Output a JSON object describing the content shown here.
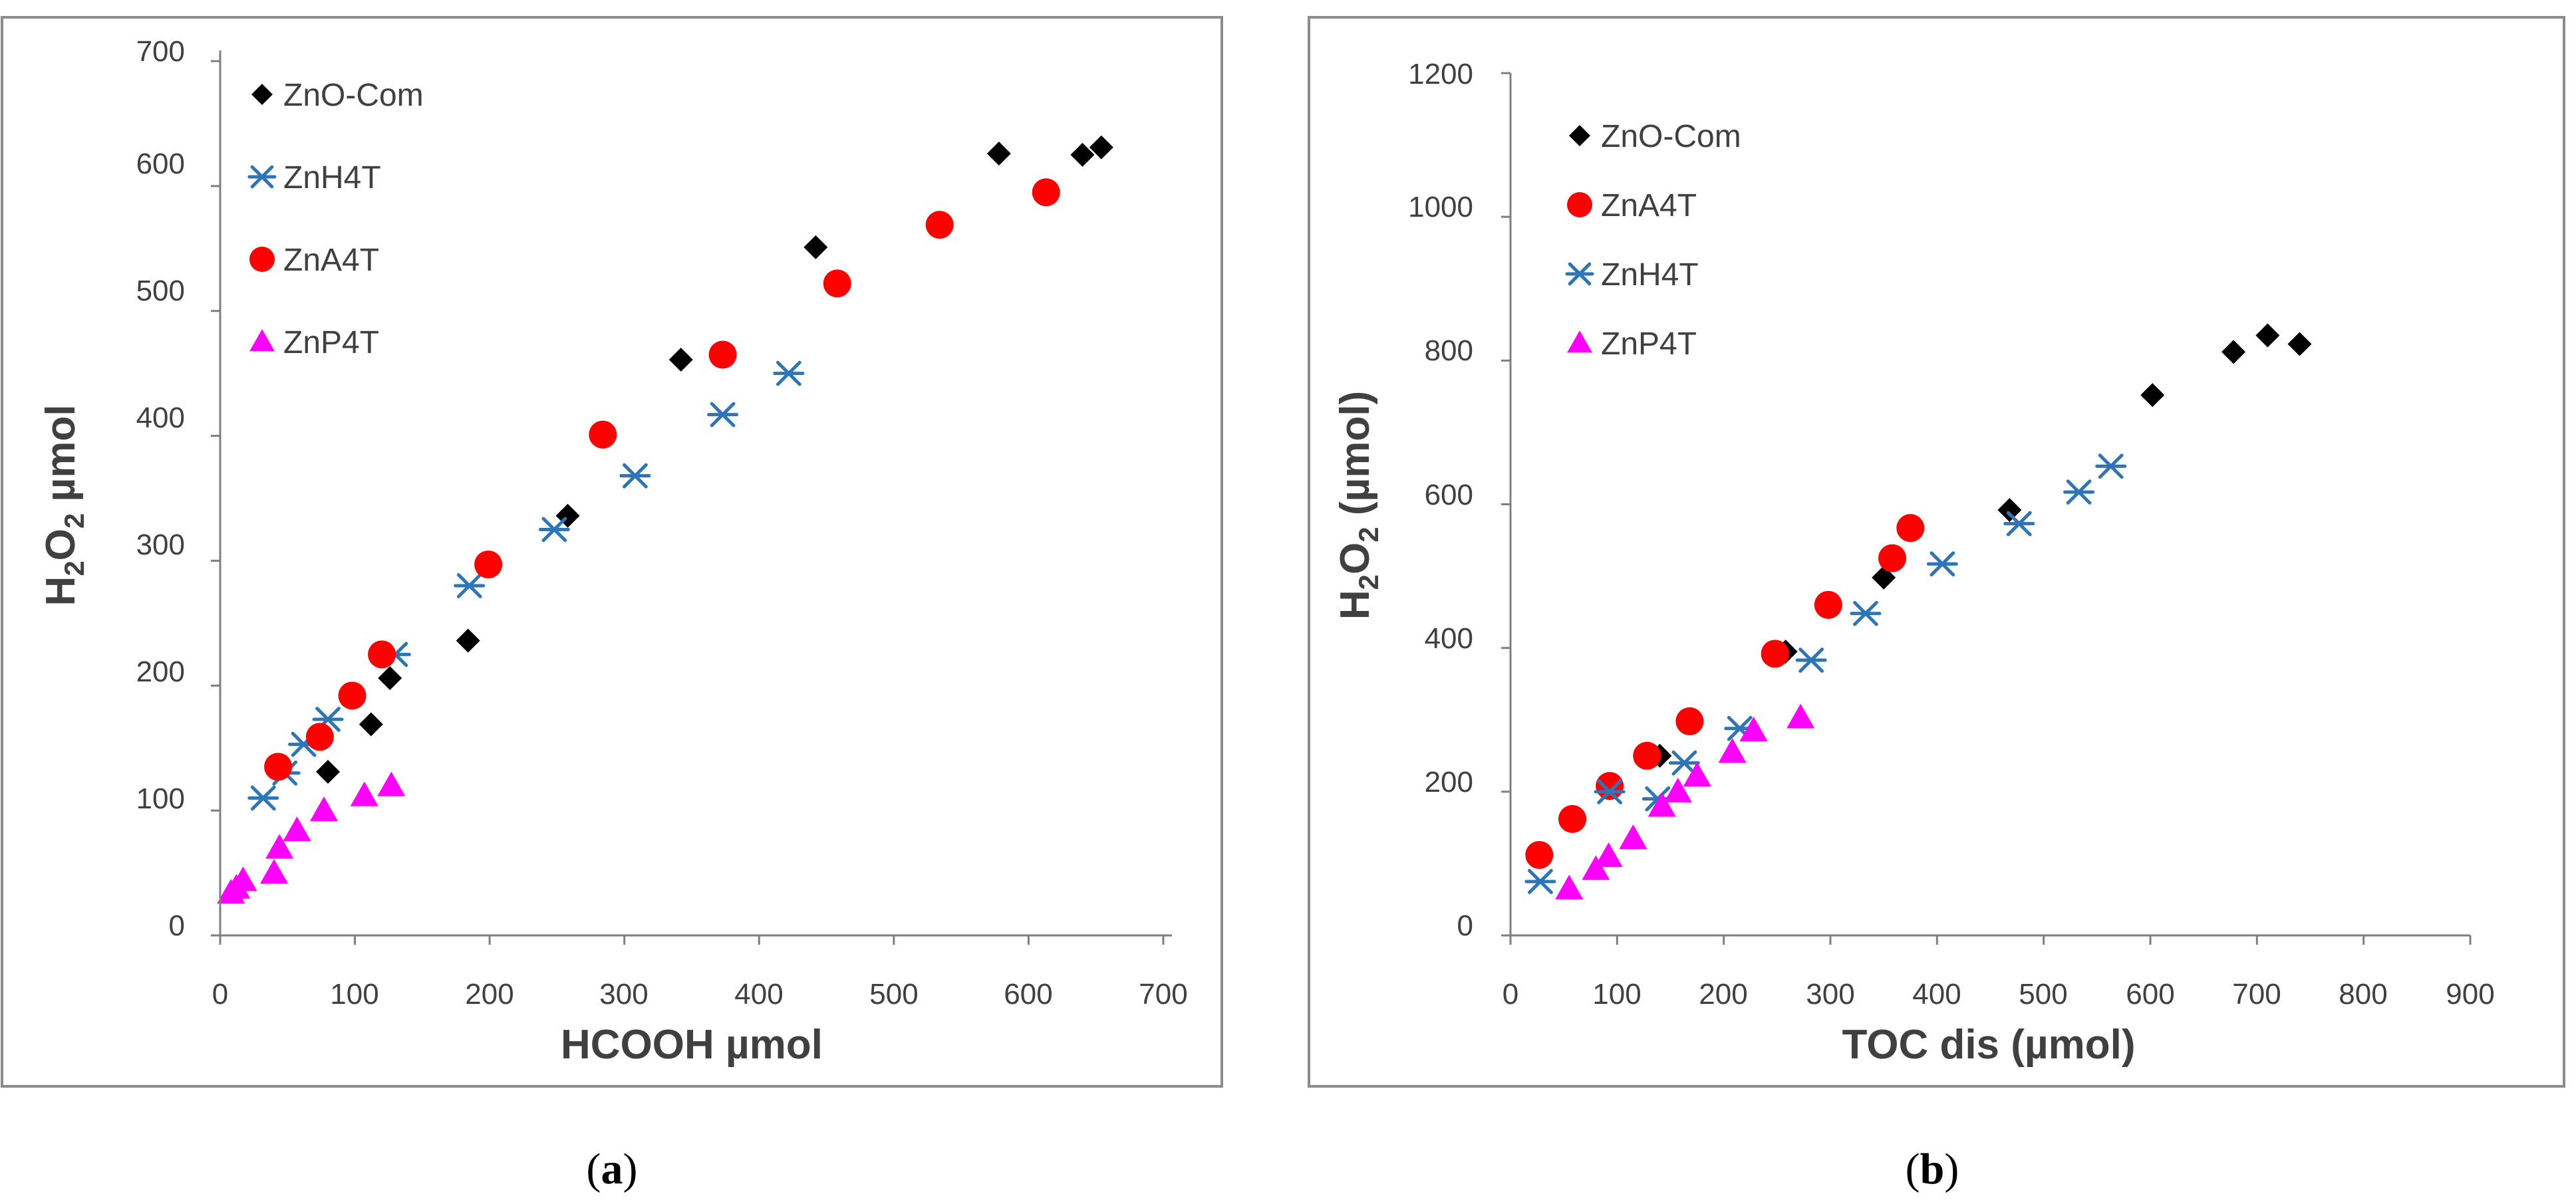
{
  "colors": {
    "ZnO-Com": "#000000",
    "ZnH4T": "#2E75B6",
    "ZnA4T": "#FF0000",
    "ZnP4T": "#FF00FF",
    "axis": "#7F7F7F",
    "frame": "#8C8C8C",
    "text": "#404040"
  },
  "chart_data": [
    {
      "id": "a",
      "type": "scatter",
      "caption": {
        "open": "(",
        "letter": "a",
        "close": ")"
      },
      "xlabel": "HCOOH µmol",
      "ylabel": {
        "main": "H",
        "sub1": "2",
        "mid": "O",
        "sub2": "2",
        "rest": " µmol"
      },
      "xlim": [
        0,
        700
      ],
      "ylim": [
        0,
        700
      ],
      "xticks": [
        0,
        100,
        200,
        300,
        400,
        500,
        600,
        700
      ],
      "yticks": [
        0,
        100,
        200,
        300,
        400,
        500,
        600,
        700
      ],
      "legend_order": [
        "ZnO-Com",
        "ZnH4T",
        "ZnA4T",
        "ZnP4T"
      ],
      "series": [
        {
          "name": "ZnO-Com",
          "marker": "diamond",
          "x": [
            80,
            112,
            126,
            184,
            258,
            342,
            442,
            578,
            640,
            654
          ],
          "y": [
            131,
            169,
            206,
            236,
            336,
            461,
            551,
            626,
            625,
            631
          ]
        },
        {
          "name": "ZnH4T",
          "marker": "star",
          "x": [
            32,
            48,
            62,
            80,
            130,
            185,
            248,
            308,
            373,
            422
          ],
          "y": [
            110,
            130,
            153,
            173,
            225,
            280,
            325,
            368,
            417,
            450
          ]
        },
        {
          "name": "ZnA4T",
          "marker": "circle",
          "x": [
            43,
            74,
            98,
            120,
            199,
            284,
            373,
            458,
            534,
            613
          ],
          "y": [
            135,
            159,
            192,
            225,
            297,
            401,
            465,
            522,
            569,
            595
          ]
        },
        {
          "name": "ZnP4T",
          "marker": "triangle",
          "x": [
            8,
            12,
            17,
            40,
            44,
            57,
            77,
            107,
            127
          ],
          "y": [
            34,
            38,
            44,
            50,
            70,
            84,
            100,
            112,
            120
          ]
        }
      ]
    },
    {
      "id": "b",
      "type": "scatter",
      "caption": {
        "open": "(",
        "letter": "b",
        "close": ")"
      },
      "xlabel": "TOC dis (µmol)",
      "ylabel": {
        "main": "H",
        "sub1": "2",
        "mid": "O",
        "sub2": "2",
        "rest": " (µmol)"
      },
      "xlim": [
        0,
        900
      ],
      "ylim": [
        0,
        1200
      ],
      "xticks": [
        0,
        100,
        200,
        300,
        400,
        500,
        600,
        700,
        800,
        900
      ],
      "yticks": [
        0,
        200,
        400,
        600,
        800,
        1000,
        1200
      ],
      "legend_order": [
        "ZnO-Com",
        "ZnA4T",
        "ZnH4T",
        "ZnP4T"
      ],
      "series": [
        {
          "name": "ZnO-Com",
          "marker": "diamond",
          "x": [
            140,
            258,
            350,
            468,
            602,
            678,
            710,
            740
          ],
          "y": [
            250,
            395,
            498,
            592,
            752,
            812,
            835,
            823
          ]
        },
        {
          "name": "ZnA4T",
          "marker": "circle",
          "x": [
            27,
            58,
            93,
            128,
            168,
            248,
            298,
            358,
            375
          ],
          "y": [
            112,
            162,
            208,
            250,
            298,
            392,
            460,
            525,
            567
          ]
        },
        {
          "name": "ZnH4T",
          "marker": "star",
          "x": [
            28,
            93,
            138,
            163,
            215,
            282,
            333,
            405,
            477,
            533,
            563
          ],
          "y": [
            75,
            200,
            190,
            240,
            288,
            383,
            448,
            517,
            573,
            617,
            653
          ]
        },
        {
          "name": "ZnP4T",
          "marker": "triangle",
          "x": [
            55,
            80,
            92,
            115,
            142,
            157,
            175,
            208,
            228,
            272
          ],
          "y": [
            65,
            92,
            110,
            135,
            180,
            200,
            222,
            255,
            285,
            303
          ]
        }
      ]
    }
  ]
}
